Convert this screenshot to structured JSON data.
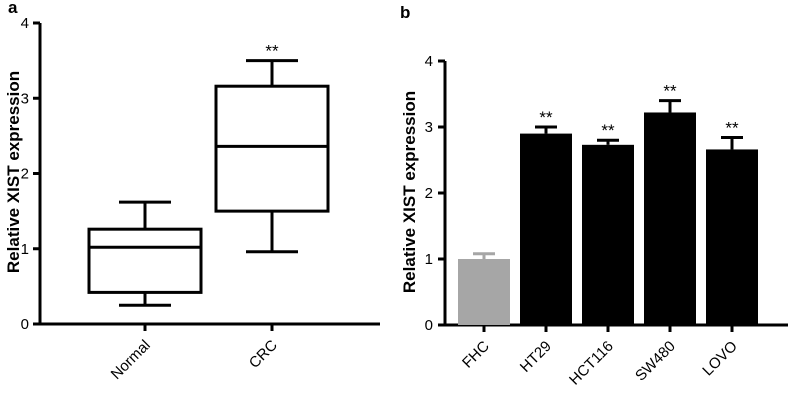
{
  "chart_data": [
    {
      "type": "box",
      "panel_label": "a",
      "ylabel": "Relative XIST expression",
      "xlabel": "",
      "ylim": [
        0,
        4
      ],
      "yticks": [
        "0",
        "1",
        "2",
        "3",
        "4"
      ],
      "categories": [
        "Normal",
        "CRC"
      ],
      "boxes": [
        {
          "category": "Normal",
          "min": 0.25,
          "q1": 0.42,
          "median": 1.02,
          "q3": 1.26,
          "max": 1.62,
          "significance": ""
        },
        {
          "category": "CRC",
          "min": 0.96,
          "q1": 1.5,
          "median": 2.36,
          "q3": 3.16,
          "max": 3.5,
          "significance": "**"
        }
      ],
      "grid": false,
      "colors": {
        "box_stroke": "#000000",
        "box_fill": "#ffffff"
      }
    },
    {
      "type": "bar",
      "panel_label": "b",
      "ylabel": "Relative XIST expression",
      "xlabel": "",
      "ylim": [
        0,
        4
      ],
      "yticks": [
        "0",
        "1",
        "2",
        "3",
        "4"
      ],
      "categories": [
        "FHC",
        "HT29",
        "HCT116",
        "SW480",
        "LOVO"
      ],
      "values": [
        1.0,
        2.9,
        2.73,
        3.22,
        2.66
      ],
      "errors": [
        0.08,
        0.1,
        0.07,
        0.18,
        0.18
      ],
      "significance": [
        "",
        "**",
        "**",
        "**",
        "**"
      ],
      "bar_colors": [
        "#a6a6a6",
        "#000000",
        "#000000",
        "#000000",
        "#000000"
      ],
      "grid": false
    }
  ]
}
